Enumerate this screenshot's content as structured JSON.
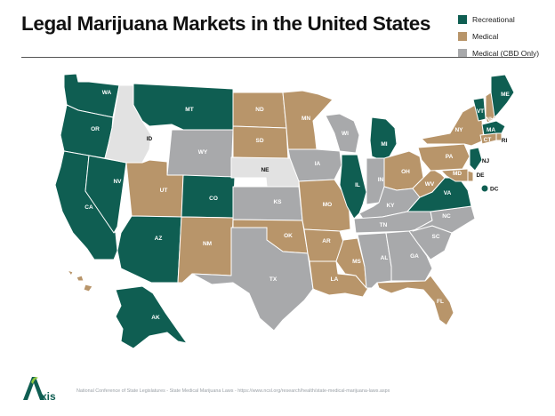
{
  "title": "Legal Marijuana Markets in the United States",
  "legend": [
    {
      "label": "Recreational",
      "color": "#0f5e52"
    },
    {
      "label": "Medical",
      "color": "#b8956a"
    },
    {
      "label": "Medical (CBD Only)",
      "color": "#a8a9ab"
    }
  ],
  "colors": {
    "recreational": "#0f5e52",
    "medical": "#b8956a",
    "cbd": "#a8a9ab",
    "none": "#e2e2e2"
  },
  "states": [
    {
      "abbr": "WA",
      "status": "recreational"
    },
    {
      "abbr": "OR",
      "status": "recreational"
    },
    {
      "abbr": "CA",
      "status": "recreational"
    },
    {
      "abbr": "NV",
      "status": "recreational"
    },
    {
      "abbr": "ID",
      "status": "none"
    },
    {
      "abbr": "MT",
      "status": "recreational"
    },
    {
      "abbr": "WY",
      "status": "cbd"
    },
    {
      "abbr": "UT",
      "status": "medical"
    },
    {
      "abbr": "AZ",
      "status": "recreational"
    },
    {
      "abbr": "CO",
      "status": "recreational"
    },
    {
      "abbr": "NM",
      "status": "medical"
    },
    {
      "abbr": "ND",
      "status": "medical"
    },
    {
      "abbr": "SD",
      "status": "medical"
    },
    {
      "abbr": "NE",
      "status": "none"
    },
    {
      "abbr": "KS",
      "status": "cbd"
    },
    {
      "abbr": "OK",
      "status": "medical"
    },
    {
      "abbr": "TX",
      "status": "cbd"
    },
    {
      "abbr": "MN",
      "status": "medical"
    },
    {
      "abbr": "IA",
      "status": "cbd"
    },
    {
      "abbr": "MO",
      "status": "medical"
    },
    {
      "abbr": "AR",
      "status": "medical"
    },
    {
      "abbr": "LA",
      "status": "medical"
    },
    {
      "abbr": "WI",
      "status": "cbd"
    },
    {
      "abbr": "IL",
      "status": "recreational"
    },
    {
      "abbr": "MI",
      "status": "recreational"
    },
    {
      "abbr": "IN",
      "status": "cbd"
    },
    {
      "abbr": "OH",
      "status": "medical"
    },
    {
      "abbr": "KY",
      "status": "cbd"
    },
    {
      "abbr": "TN",
      "status": "cbd"
    },
    {
      "abbr": "MS",
      "status": "medical"
    },
    {
      "abbr": "AL",
      "status": "cbd"
    },
    {
      "abbr": "GA",
      "status": "cbd"
    },
    {
      "abbr": "FL",
      "status": "medical"
    },
    {
      "abbr": "SC",
      "status": "cbd"
    },
    {
      "abbr": "NC",
      "status": "cbd"
    },
    {
      "abbr": "VA",
      "status": "recreational"
    },
    {
      "abbr": "WV",
      "status": "medical"
    },
    {
      "abbr": "PA",
      "status": "medical"
    },
    {
      "abbr": "NY",
      "status": "medical"
    },
    {
      "abbr": "VT",
      "status": "recreational"
    },
    {
      "abbr": "NH",
      "status": "medical"
    },
    {
      "abbr": "ME",
      "status": "recreational"
    },
    {
      "abbr": "MA",
      "status": "recreational"
    },
    {
      "abbr": "RI",
      "status": "medical"
    },
    {
      "abbr": "CT",
      "status": "medical"
    },
    {
      "abbr": "NJ",
      "status": "recreational"
    },
    {
      "abbr": "DE",
      "status": "medical"
    },
    {
      "abbr": "MD",
      "status": "medical"
    },
    {
      "abbr": "DC",
      "status": "recreational"
    },
    {
      "abbr": "AK",
      "status": "recreational"
    },
    {
      "abbr": "HI",
      "status": "medical"
    }
  ],
  "logo_text": "Axis",
  "source": "National Conference of State Legislatures - State Medical Marijuana Laws - https://www.ncsl.org/research/health/state-medical-marijuana-laws.aspx"
}
